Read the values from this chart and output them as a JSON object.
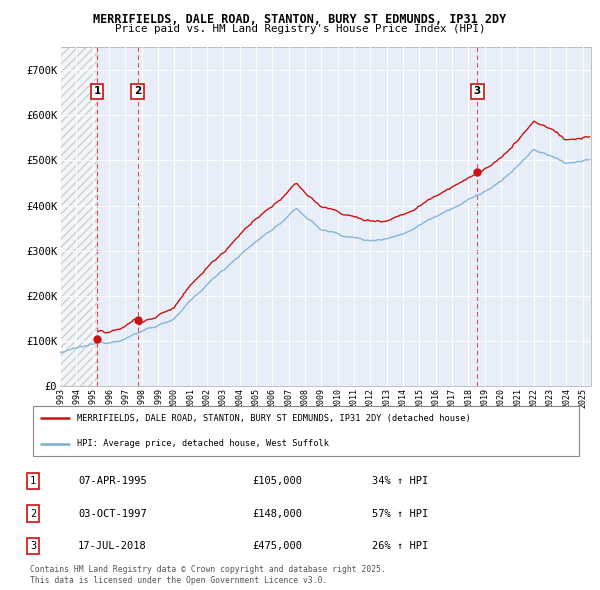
{
  "title_line1": "MERRIFIELDS, DALE ROAD, STANTON, BURY ST EDMUNDS, IP31 2DY",
  "title_line2": "Price paid vs. HM Land Registry's House Price Index (HPI)",
  "ylim": [
    0,
    750000
  ],
  "yticks": [
    0,
    100000,
    200000,
    300000,
    400000,
    500000,
    600000,
    700000
  ],
  "ytick_labels": [
    "£0",
    "£100K",
    "£200K",
    "£300K",
    "£400K",
    "£500K",
    "£600K",
    "£700K"
  ],
  "sale_dates": [
    1995.27,
    1997.75,
    2018.54
  ],
  "sale_prices": [
    105000,
    148000,
    475000
  ],
  "sale_labels": [
    "1",
    "2",
    "3"
  ],
  "xlim_start": 1993,
  "xlim_end": 2025.5,
  "legend_entries": [
    "MERRIFIELDS, DALE ROAD, STANTON, BURY ST EDMUNDS, IP31 2DY (detached house)",
    "HPI: Average price, detached house, West Suffolk"
  ],
  "table_rows": [
    [
      "1",
      "07-APR-1995",
      "£105,000",
      "34% ↑ HPI"
    ],
    [
      "2",
      "03-OCT-1997",
      "£148,000",
      "57% ↑ HPI"
    ],
    [
      "3",
      "17-JUL-2018",
      "£475,000",
      "26% ↑ HPI"
    ]
  ],
  "footer": "Contains HM Land Registry data © Crown copyright and database right 2025.\nThis data is licensed under the Open Government Licence v3.0.",
  "hpi_color": "#7bafd4",
  "price_color": "#cc1111",
  "plot_bg_color": "#e8eef8",
  "grid_color": "#ffffff",
  "hatch_color": "#c8c8c8"
}
